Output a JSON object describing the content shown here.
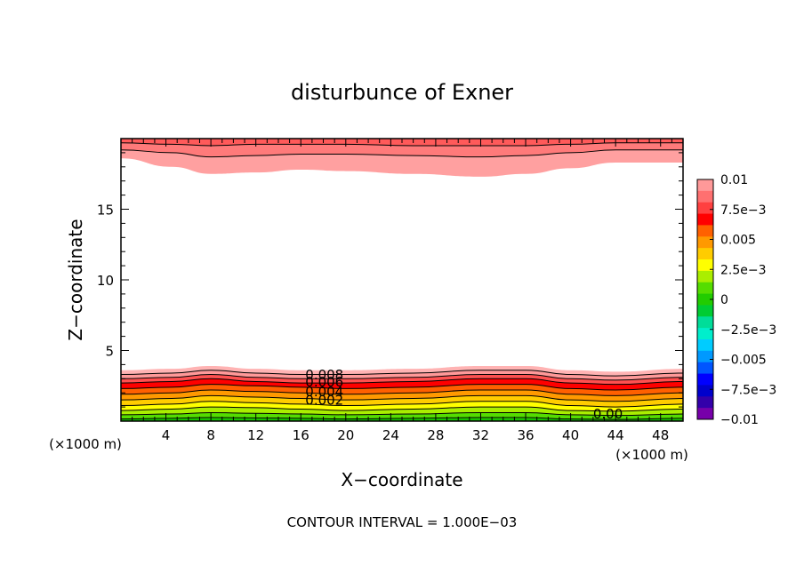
{
  "chart_data": {
    "type": "contour",
    "title": "disturbunce of Exner",
    "xlabel": "X−coordinate",
    "ylabel": "Z−coordinate",
    "x_unit": "(×1000 m)",
    "y_unit": "(×1000 m)",
    "xlim": [
      0,
      50
    ],
    "ylim": [
      0,
      20
    ],
    "x_ticks": [
      "4",
      "8",
      "12",
      "16",
      "20",
      "24",
      "28",
      "32",
      "36",
      "40",
      "44",
      "48"
    ],
    "y_ticks": [
      "5",
      "10",
      "15"
    ],
    "contour_interval_text": "CONTOUR INTERVAL = 1.000E−03",
    "contour_labels": [
      "0.008",
      "0.006",
      "0.004",
      "0.002",
      "0.00"
    ],
    "colorbar": {
      "tick_labels": [
        "0.01",
        "7.5e−3",
        "0.005",
        "2.5e−3",
        "0",
        "−2.5e−3",
        "−0.005",
        "−7.5e−3",
        "−0.01"
      ],
      "colors": [
        "#ff9999",
        "#ff7070",
        "#ff4040",
        "#ff0000",
        "#ff6000",
        "#ff9900",
        "#ffcc00",
        "#ffff00",
        "#aaee00",
        "#55dd00",
        "#22cc00",
        "#00cc33",
        "#00dd99",
        "#00eecc",
        "#00ccff",
        "#0099ff",
        "#0055ff",
        "#0000ff",
        "#0000cc",
        "#3300aa",
        "#7700aa"
      ]
    },
    "bottom_layers": [
      {
        "color": "#ffb3b3",
        "top": [
          3.6,
          3.7,
          3.9,
          3.7,
          3.6,
          3.6,
          3.7,
          3.9,
          3.9,
          3.6,
          3.5,
          3.7
        ]
      },
      {
        "color": "#ff9999",
        "top": [
          3.3,
          3.4,
          3.6,
          3.4,
          3.3,
          3.3,
          3.4,
          3.6,
          3.6,
          3.3,
          3.2,
          3.4
        ]
      },
      {
        "color": "#ff5050",
        "top": [
          3.0,
          3.1,
          3.3,
          3.1,
          3.0,
          3.0,
          3.1,
          3.3,
          3.3,
          3.0,
          2.9,
          3.1
        ]
      },
      {
        "color": "#ff0000",
        "top": [
          2.7,
          2.8,
          3.0,
          2.8,
          2.7,
          2.7,
          2.8,
          3.0,
          3.0,
          2.7,
          2.6,
          2.8
        ]
      },
      {
        "color": "#ff6000",
        "top": [
          2.3,
          2.4,
          2.6,
          2.5,
          2.4,
          2.3,
          2.4,
          2.6,
          2.6,
          2.3,
          2.2,
          2.4
        ]
      },
      {
        "color": "#ff9900",
        "top": [
          1.9,
          2.0,
          2.2,
          2.1,
          2.0,
          1.9,
          2.0,
          2.2,
          2.2,
          1.9,
          1.8,
          2.0
        ]
      },
      {
        "color": "#ffcc00",
        "top": [
          1.5,
          1.6,
          1.8,
          1.7,
          1.6,
          1.5,
          1.6,
          1.8,
          1.8,
          1.5,
          1.4,
          1.6
        ]
      },
      {
        "color": "#ffff00",
        "top": [
          1.1,
          1.2,
          1.4,
          1.3,
          1.2,
          1.1,
          1.2,
          1.4,
          1.4,
          1.1,
          1.0,
          1.2
        ]
      },
      {
        "color": "#aaee00",
        "top": [
          0.75,
          0.85,
          1.0,
          0.95,
          0.85,
          0.75,
          0.85,
          1.0,
          1.0,
          0.75,
          0.7,
          0.85
        ]
      },
      {
        "color": "#55dd00",
        "top": [
          0.45,
          0.5,
          0.6,
          0.55,
          0.5,
          0.45,
          0.5,
          0.6,
          0.6,
          0.45,
          0.4,
          0.5
        ]
      },
      {
        "color": "#22cc00",
        "top": [
          0.15,
          0.2,
          0.25,
          0.22,
          0.2,
          0.15,
          0.2,
          0.25,
          0.25,
          0.15,
          0.12,
          0.2
        ]
      }
    ],
    "top_layers": [
      {
        "color": "#ffa0a0",
        "bottom": [
          18.6,
          18.0,
          17.5,
          17.6,
          17.8,
          17.7,
          17.5,
          17.3,
          17.5,
          17.9,
          18.3,
          18.3
        ]
      },
      {
        "color": "#ff7a7a",
        "bottom": [
          19.2,
          19.0,
          18.7,
          18.8,
          18.9,
          18.9,
          18.8,
          18.7,
          18.8,
          19.0,
          19.2,
          19.2
        ]
      },
      {
        "color": "#ff5a5a",
        "bottom": [
          19.7,
          19.6,
          19.5,
          19.6,
          19.6,
          19.6,
          19.5,
          19.5,
          19.5,
          19.6,
          19.7,
          19.7
        ]
      }
    ],
    "layer_x": [
      0,
      4.5,
      8,
      12,
      16,
      20,
      26,
      32,
      36,
      40,
      44,
      50
    ]
  }
}
